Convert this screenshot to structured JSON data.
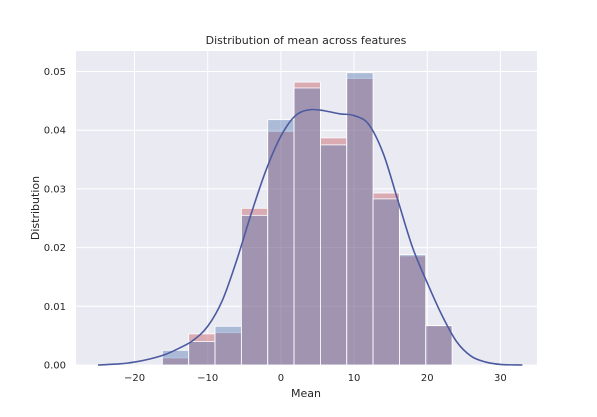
{
  "chart_data": {
    "type": "histogram",
    "title": "Distribution of mean across features",
    "xlabel": "Mean",
    "ylabel": "Distribution",
    "xlim": [
      -28,
      35
    ],
    "ylim": [
      0,
      0.0535
    ],
    "xticks": [
      -20,
      -10,
      0,
      10,
      20,
      30
    ],
    "xtick_labels": [
      "−20",
      "−10",
      "0",
      "10",
      "20",
      "30"
    ],
    "yticks": [
      0.0,
      0.01,
      0.02,
      0.03,
      0.04,
      0.05
    ],
    "ytick_labels": [
      "0.00",
      "0.01",
      "0.02",
      "0.03",
      "0.04",
      "0.05"
    ],
    "grid": true,
    "background": "#eaeaf2",
    "bin_edges": [
      -16.2,
      -12.6,
      -9.0,
      -5.4,
      -1.8,
      1.8,
      5.4,
      9.0,
      12.6,
      16.2,
      19.8,
      23.4
    ],
    "series": [
      {
        "color": "#dd8452",
        "hist_color": "#c44e52",
        "values": [
          0.0012,
          0.0053,
          0.0055,
          0.0267,
          0.0398,
          0.0482,
          0.0387,
          0.0488,
          0.0293,
          0.0186,
          0.0067
        ]
      },
      {
        "color": "#4c72b0",
        "hist_color": "#4c72b0",
        "values": [
          0.0025,
          0.004,
          0.0066,
          0.0255,
          0.0418,
          0.0472,
          0.0375,
          0.0498,
          0.0283,
          0.0188,
          0.0067
        ]
      }
    ],
    "kde": {
      "color": "#4c5aa0",
      "x": [
        -25.0,
        -22.0,
        -20.0,
        -18.0,
        -16.0,
        -14.0,
        -12.0,
        -10.0,
        -8.0,
        -6.0,
        -4.0,
        -2.0,
        0.0,
        2.0,
        4.0,
        6.0,
        8.0,
        10.0,
        12.0,
        14.0,
        16.0,
        18.0,
        20.0,
        22.0,
        24.0,
        26.0,
        28.0,
        30.0,
        33.0
      ],
      "y": [
        0.0,
        0.0002,
        0.0005,
        0.001,
        0.0017,
        0.0028,
        0.0042,
        0.0066,
        0.011,
        0.018,
        0.026,
        0.0333,
        0.039,
        0.0425,
        0.0435,
        0.0433,
        0.0428,
        0.0425,
        0.041,
        0.036,
        0.028,
        0.02,
        0.014,
        0.0085,
        0.004,
        0.0015,
        0.0005,
        0.0001,
        0.0
      ]
    }
  }
}
